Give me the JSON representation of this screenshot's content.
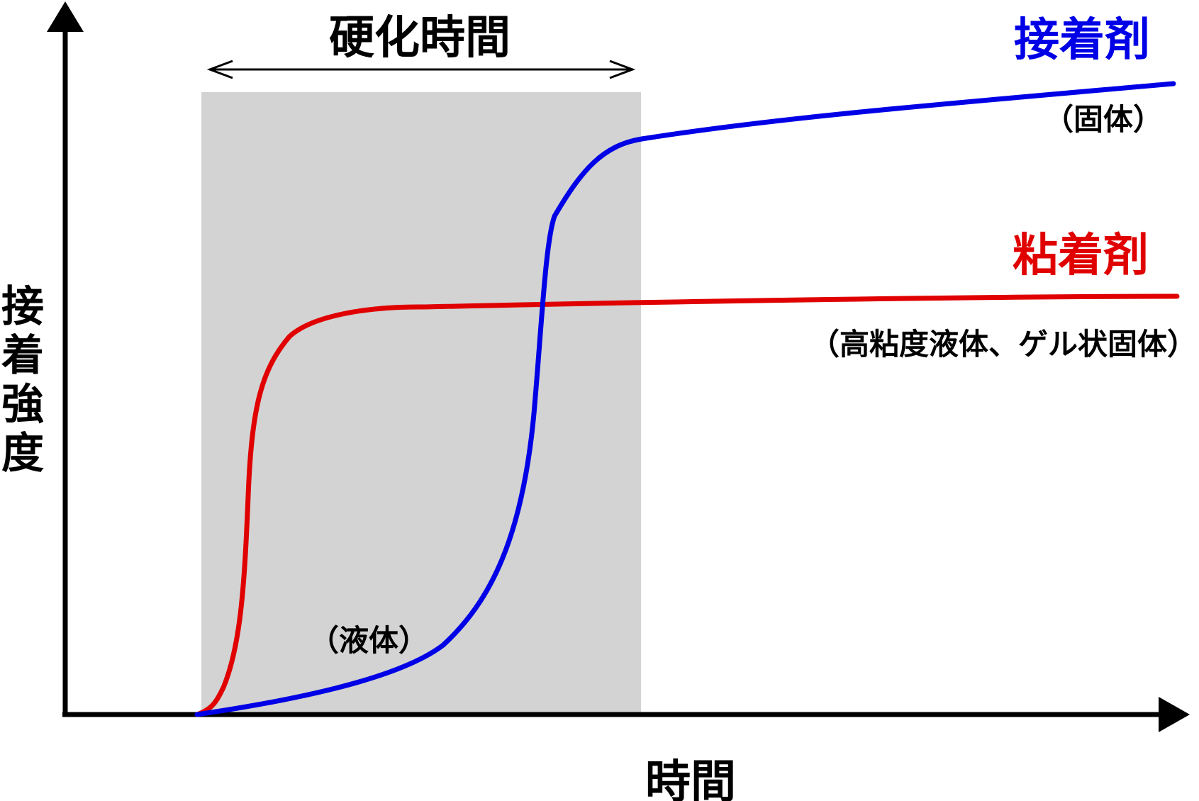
{
  "title": "",
  "axes": {
    "y_label": "接着強度",
    "x_label": "時間"
  },
  "curing_period": {
    "label": "硬化時間"
  },
  "curves": {
    "adhesive": {
      "name": "接着剤",
      "state_note": "（固体）",
      "color": "#0000e6"
    },
    "pressure_sensitive": {
      "name": "粘着剤",
      "state_note": "（高粘度液体、ゲル状固体）",
      "color": "#e00000"
    }
  },
  "liquid_note": "（液体）",
  "colors": {
    "axis": "#000000",
    "shaded_region": "#d3d3d3",
    "background": "#ffffff"
  }
}
